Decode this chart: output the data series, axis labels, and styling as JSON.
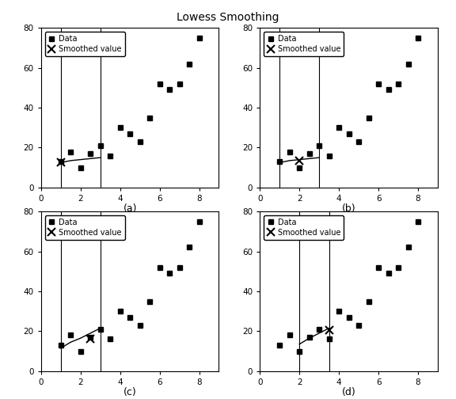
{
  "title": "Lowess Smoothing",
  "data_x": [
    1,
    1.5,
    2,
    2.5,
    3,
    3.5,
    4,
    4.5,
    5,
    5.5,
    6,
    6.5,
    7,
    7.5,
    8
  ],
  "data_y": [
    13,
    18,
    10,
    17,
    21,
    16,
    30,
    27,
    23,
    35,
    52,
    49,
    52,
    62,
    75
  ],
  "xlim": [
    0,
    9
  ],
  "ylim": [
    0,
    80
  ],
  "xticks": [
    0,
    2,
    4,
    6,
    8
  ],
  "yticks": [
    0,
    20,
    40,
    60,
    80
  ],
  "subplots": [
    {
      "label": "(a)",
      "vline1": 1,
      "vline2": 3,
      "smooth_x": 1.0,
      "smooth_y": 12.5,
      "curve_x": [
        1.0,
        1.5,
        2.0,
        2.5,
        3.0
      ],
      "curve_y": [
        12.5,
        13.5,
        14.0,
        14.5,
        15.0
      ]
    },
    {
      "label": "(b)",
      "vline1": 1,
      "vline2": 3,
      "smooth_x": 2.0,
      "smooth_y": 13.5,
      "curve_x": [
        1.0,
        1.5,
        2.0,
        2.5,
        3.0
      ],
      "curve_y": [
        12.5,
        13.5,
        14.0,
        14.5,
        15.0
      ]
    },
    {
      "label": "(c)",
      "vline1": 1,
      "vline2": 3,
      "smooth_x": 2.5,
      "smooth_y": 16.0,
      "curve_x": [
        1.0,
        1.5,
        2.0,
        2.5,
        3.0
      ],
      "curve_y": [
        11.5,
        14.5,
        16.5,
        19.0,
        21.5
      ]
    },
    {
      "label": "(d)",
      "vline1": 2,
      "vline2": 3.5,
      "smooth_x": 3.5,
      "smooth_y": 20.5,
      "curve_x": [
        2.0,
        2.5,
        3.0,
        3.5
      ],
      "curve_y": [
        13.5,
        16.5,
        19.0,
        21.5
      ]
    }
  ]
}
